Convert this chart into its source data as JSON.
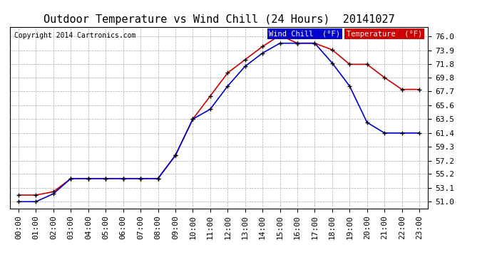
{
  "title": "Outdoor Temperature vs Wind Chill (24 Hours)  20141027",
  "copyright": "Copyright 2014 Cartronics.com",
  "legend_wind_chill": "Wind Chill  (°F)",
  "legend_temperature": "Temperature  (°F)",
  "x_labels": [
    "00:00",
    "01:00",
    "02:00",
    "03:00",
    "04:00",
    "05:00",
    "06:00",
    "07:00",
    "08:00",
    "09:00",
    "10:00",
    "11:00",
    "12:00",
    "13:00",
    "14:00",
    "15:00",
    "16:00",
    "17:00",
    "18:00",
    "19:00",
    "20:00",
    "21:00",
    "22:00",
    "23:00"
  ],
  "y_ticks": [
    51.0,
    53.1,
    55.2,
    57.2,
    59.3,
    61.4,
    63.5,
    65.6,
    67.7,
    69.8,
    71.8,
    73.9,
    76.0
  ],
  "ylim": [
    50.0,
    77.5
  ],
  "temperature": [
    52.0,
    52.0,
    52.5,
    54.5,
    54.5,
    54.5,
    54.5,
    54.5,
    54.5,
    58.0,
    63.5,
    67.0,
    70.5,
    72.5,
    74.5,
    76.2,
    75.0,
    75.0,
    74.0,
    71.8,
    71.8,
    69.8,
    68.0,
    68.0
  ],
  "wind_chill": [
    51.0,
    51.0,
    52.2,
    54.5,
    54.5,
    54.5,
    54.5,
    54.5,
    54.5,
    58.0,
    63.5,
    65.0,
    68.5,
    71.5,
    73.5,
    75.0,
    75.0,
    75.0,
    72.0,
    68.5,
    63.0,
    61.4,
    61.4,
    61.4
  ],
  "bg_color": "#ffffff",
  "plot_bg_color": "#ffffff",
  "grid_color": "#aaaaaa",
  "wind_chill_color": "#0000cc",
  "temperature_color": "#cc0000",
  "title_fontsize": 11,
  "tick_fontsize": 8,
  "copyright_fontsize": 7
}
